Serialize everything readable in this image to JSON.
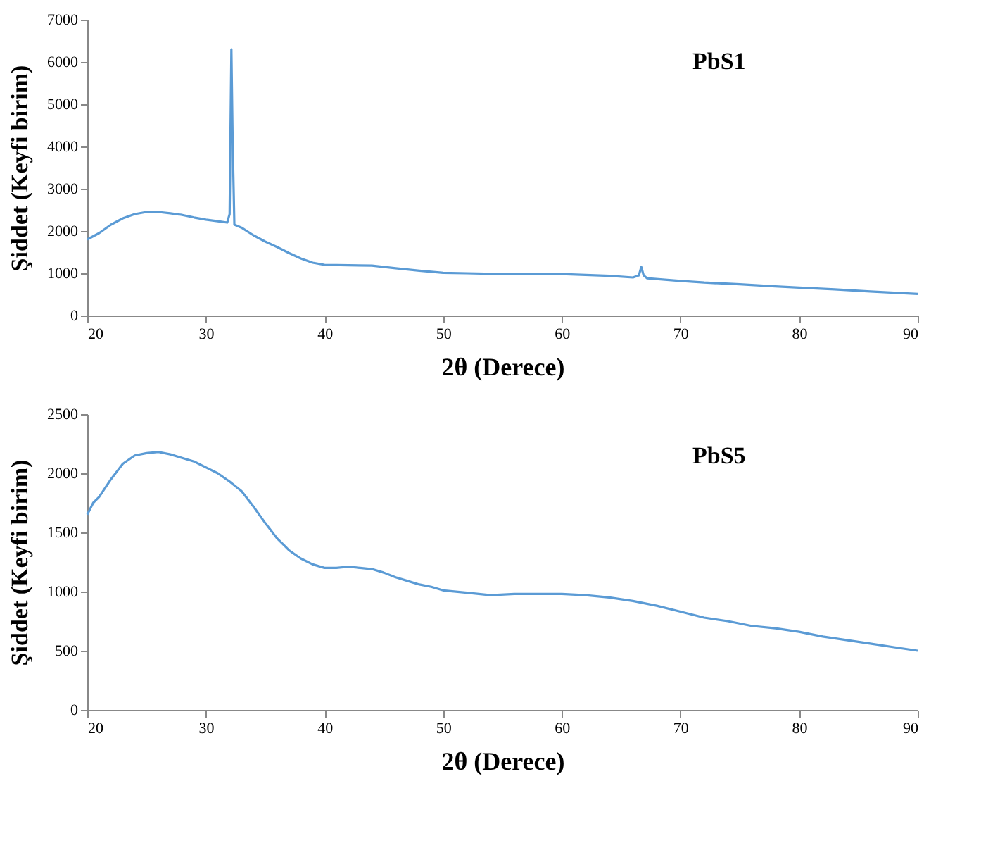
{
  "chart_data": [
    {
      "type": "line",
      "xlabel": "2θ (Derece)",
      "ylabel": "Şiddet (Keyfi birim)",
      "annotations": [
        "PbS1"
      ],
      "xlim": [
        20,
        90
      ],
      "xticks": [
        20,
        30,
        40,
        50,
        60,
        70,
        80,
        90
      ],
      "ylim": [
        0,
        7000
      ],
      "yticks": [
        0,
        1000,
        2000,
        3000,
        4000,
        5000,
        6000,
        7000
      ],
      "grid": false,
      "series": [
        {
          "color": "#5b9bd5",
          "x": [
            20,
            21,
            22,
            23,
            24,
            25,
            26,
            27,
            28,
            29,
            30,
            31,
            31.8,
            32.0,
            32.15,
            32.25,
            32.4,
            33,
            34,
            35,
            36,
            37,
            38,
            39,
            40,
            42,
            44,
            46,
            48,
            50,
            52,
            55,
            58,
            60,
            62,
            64,
            66,
            66.5,
            66.7,
            66.9,
            67.2,
            70,
            72,
            75,
            78,
            80,
            83,
            86,
            88,
            90
          ],
          "values": [
            1800,
            1950,
            2150,
            2300,
            2400,
            2450,
            2450,
            2420,
            2380,
            2320,
            2270,
            2230,
            2200,
            2400,
            6300,
            4200,
            2150,
            2080,
            1900,
            1750,
            1620,
            1480,
            1350,
            1250,
            1200,
            1190,
            1180,
            1120,
            1060,
            1010,
            1000,
            980,
            980,
            980,
            960,
            940,
            900,
            950,
            1150,
            950,
            880,
            820,
            780,
            740,
            690,
            660,
            620,
            570,
            540,
            510
          ]
        }
      ]
    },
    {
      "type": "line",
      "xlabel": "2θ (Derece)",
      "ylabel": "Şiddet (Keyfi birim)",
      "annotations": [
        "PbS5"
      ],
      "xlim": [
        20,
        90
      ],
      "xticks": [
        20,
        30,
        40,
        50,
        60,
        70,
        80,
        90
      ],
      "ylim": [
        0,
        2500
      ],
      "yticks": [
        0,
        500,
        1000,
        1500,
        2000,
        2500
      ],
      "grid": false,
      "series": [
        {
          "color": "#5b9bd5",
          "x": [
            20,
            20.5,
            21,
            22,
            23,
            24,
            25,
            26,
            27,
            28,
            29,
            30,
            31,
            32,
            33,
            34,
            35,
            36,
            37,
            38,
            39,
            40,
            41,
            42,
            43,
            44,
            45,
            46,
            47,
            48,
            49,
            50,
            52,
            54,
            56,
            58,
            60,
            62,
            64,
            66,
            68,
            70,
            72,
            74,
            76,
            78,
            80,
            82,
            84,
            86,
            88,
            90
          ],
          "values": [
            1650,
            1750,
            1800,
            1950,
            2080,
            2150,
            2170,
            2180,
            2160,
            2130,
            2100,
            2050,
            2000,
            1930,
            1850,
            1720,
            1580,
            1450,
            1350,
            1280,
            1230,
            1200,
            1200,
            1210,
            1200,
            1190,
            1160,
            1120,
            1090,
            1060,
            1040,
            1010,
            990,
            970,
            980,
            980,
            980,
            970,
            950,
            920,
            880,
            830,
            780,
            750,
            710,
            690,
            660,
            620,
            590,
            560,
            530,
            500
          ]
        }
      ]
    }
  ]
}
